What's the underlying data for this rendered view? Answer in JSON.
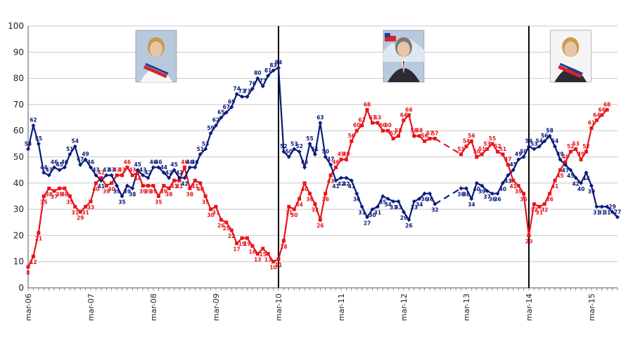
{
  "chart_data": {
    "type": "line",
    "title": "",
    "xlabel": "",
    "ylabel": "",
    "ylim": [
      0,
      100
    ],
    "yticks": [
      0,
      10,
      20,
      30,
      40,
      50,
      60,
      70,
      80,
      90,
      100
    ],
    "xlim": [
      "2006-03",
      "2015-08"
    ],
    "x_tick_labels": [
      "mar-06",
      "mar-07",
      "mar-08",
      "mar-09",
      "mar-10",
      "mar-11",
      "mar-12",
      "mar-13",
      "mar-14",
      "mar-15"
    ],
    "grid": "horizontal",
    "legend": "none",
    "vertical_markers": [
      "2010-03",
      "2014-03"
    ],
    "colors": {
      "approval": "#e8141b",
      "disapproval": "#0a1a7a"
    },
    "portraits": [
      {
        "icon": "portrait-bachelet-icon",
        "at": "2008-03"
      },
      {
        "icon": "portrait-pinera-icon",
        "at": "2012-03"
      },
      {
        "icon": "portrait-bachelet-sash-icon",
        "at": "2014-11"
      }
    ],
    "series": [
      {
        "key": "approval",
        "points": [
          [
            "2006-03",
            8
          ],
          [
            "2006-04",
            12
          ],
          [
            "2006-05",
            21
          ],
          [
            "2006-06",
            35
          ],
          [
            "2006-07",
            38
          ],
          [
            "2006-08",
            37
          ],
          [
            "2006-09",
            38
          ],
          [
            "2006-10",
            38
          ],
          [
            "2006-11",
            35
          ],
          [
            "2006-12",
            31
          ],
          [
            "2007-01",
            29
          ],
          [
            "2007-02",
            31
          ],
          [
            "2007-03",
            33
          ],
          [
            "2007-04",
            40
          ],
          [
            "2007-05",
            42
          ],
          [
            "2007-06",
            39
          ],
          [
            "2007-07",
            40
          ],
          [
            "2007-08",
            43
          ],
          [
            "2007-09",
            43
          ],
          [
            "2007-10",
            46
          ],
          [
            "2007-11",
            43
          ],
          [
            "2007-12",
            44
          ],
          [
            "2008-01",
            39
          ],
          [
            "2008-02",
            39
          ],
          [
            "2008-03",
            39
          ],
          [
            "2008-04",
            35
          ],
          [
            "2008-05",
            39
          ],
          [
            "2008-06",
            38
          ],
          [
            "2008-07",
            41
          ],
          [
            "2008-08",
            41
          ],
          [
            "2008-09",
            46
          ],
          [
            "2008-10",
            38
          ],
          [
            "2008-11",
            41
          ],
          [
            "2008-12",
            40
          ],
          [
            "2009-01",
            35
          ],
          [
            "2009-02",
            30
          ],
          [
            "2009-03",
            31
          ],
          [
            "2009-04",
            26
          ],
          [
            "2009-05",
            25
          ],
          [
            "2009-06",
            22
          ],
          [
            "2009-07",
            17
          ],
          [
            "2009-08",
            19
          ],
          [
            "2009-09",
            19
          ],
          [
            "2009-10",
            16
          ],
          [
            "2009-11",
            13
          ],
          [
            "2009-12",
            15
          ],
          [
            "2010-01",
            13
          ],
          [
            "2010-02",
            10
          ],
          [
            "2010-03",
            11
          ],
          [
            "2010-04",
            18
          ],
          [
            "2010-05",
            31
          ],
          [
            "2010-06",
            30
          ],
          [
            "2010-07",
            34
          ],
          [
            "2010-08",
            40
          ],
          [
            "2010-09",
            36
          ],
          [
            "2010-10",
            32
          ],
          [
            "2010-11",
            26
          ],
          [
            "2010-12",
            36
          ],
          [
            "2011-01",
            43
          ],
          [
            "2011-02",
            46
          ],
          [
            "2011-03",
            49
          ],
          [
            "2011-04",
            49
          ],
          [
            "2011-05",
            56
          ],
          [
            "2011-06",
            60
          ],
          [
            "2011-07",
            62
          ],
          [
            "2011-08",
            68
          ],
          [
            "2011-09",
            63
          ],
          [
            "2011-10",
            63
          ],
          [
            "2011-11",
            60
          ],
          [
            "2011-12",
            60
          ],
          [
            "2012-01",
            57
          ],
          [
            "2012-02",
            58
          ],
          [
            "2012-03",
            64
          ],
          [
            "2012-04",
            66
          ],
          [
            "2012-05",
            58
          ],
          [
            "2012-06",
            58
          ],
          [
            "2012-07",
            56
          ],
          [
            "2012-08",
            57
          ],
          [
            "2012-09",
            57
          ],
          null,
          null,
          null,
          null,
          null,
          [
            "2013-02",
            51
          ],
          [
            "2013-03",
            54
          ],
          [
            "2013-04",
            56
          ],
          [
            "2013-05",
            50
          ],
          [
            "2013-06",
            51
          ],
          [
            "2013-07",
            53
          ],
          [
            "2013-08",
            55
          ],
          [
            "2013-09",
            52
          ],
          [
            "2013-10",
            51
          ],
          [
            "2013-11",
            47
          ],
          [
            "2013-12",
            41
          ],
          [
            "2014-01",
            39
          ],
          [
            "2014-02",
            36
          ],
          [
            "2014-03",
            20
          ],
          [
            "2014-04",
            32
          ],
          [
            "2014-05",
            31
          ],
          [
            "2014-06",
            32
          ],
          [
            "2014-07",
            36
          ],
          [
            "2014-08",
            41
          ],
          [
            "2014-09",
            45
          ],
          [
            "2014-10",
            48
          ],
          [
            "2014-11",
            52
          ],
          [
            "2014-12",
            53
          ],
          [
            "2015-01",
            49
          ],
          [
            "2015-02",
            52
          ],
          [
            "2015-03",
            61
          ],
          [
            "2015-04",
            64
          ],
          [
            "2015-05",
            66
          ],
          [
            "2015-06",
            68
          ]
        ],
        "labels": [
          "8",
          "12",
          "21",
          "35",
          "38",
          "37",
          "38",
          "38",
          "35",
          "31",
          "29",
          "31",
          "33",
          "40",
          "42",
          "39",
          "40",
          "43",
          "43",
          "46",
          "43",
          "44",
          "39",
          "39",
          "39",
          "35",
          "39",
          "38",
          "41",
          "41",
          "46",
          "38",
          "41",
          "40",
          "35",
          "30",
          "31",
          "26",
          "25",
          "22",
          "17",
          "19",
          "19",
          "16",
          "13",
          "15",
          "13",
          "10",
          "11",
          "18",
          "31",
          "30",
          "34",
          "40",
          "36",
          "32",
          "26",
          "36",
          "43",
          "46",
          "49",
          "49",
          "56",
          "60",
          "62",
          "68",
          "63",
          "63",
          "60",
          "60",
          "57",
          "58",
          "64",
          "66",
          "58",
          "58",
          "56",
          "57",
          "57",
          "",
          "",
          "",
          "",
          "",
          "51",
          "54",
          "56",
          "50",
          "51",
          "53",
          "55",
          "52",
          "51",
          "47",
          "41",
          "39",
          "36",
          "20",
          "32",
          "31",
          "32",
          "36",
          "41",
          "45",
          "48",
          "52",
          "53",
          "49",
          "52",
          "61",
          "64",
          "66",
          "68"
        ]
      },
      {
        "key": "disapproval",
        "points": [
          [
            "2006-03",
            53
          ],
          [
            "2006-04",
            62
          ],
          [
            "2006-05",
            55
          ],
          [
            "2006-06",
            44
          ],
          [
            "2006-07",
            43
          ],
          [
            "2006-08",
            46
          ],
          [
            "2006-09",
            45
          ],
          [
            "2006-10",
            46
          ],
          [
            "2006-11",
            51
          ],
          [
            "2006-12",
            54
          ],
          [
            "2007-01",
            47
          ],
          [
            "2007-02",
            49
          ],
          [
            "2007-03",
            46
          ],
          [
            "2007-04",
            43
          ],
          [
            "2007-05",
            41
          ],
          [
            "2007-06",
            43
          ],
          [
            "2007-07",
            43
          ],
          [
            "2007-08",
            39
          ],
          [
            "2007-09",
            35
          ],
          [
            "2007-10",
            39
          ],
          [
            "2007-11",
            38
          ],
          [
            "2007-12",
            45
          ],
          [
            "2008-01",
            43
          ],
          [
            "2008-02",
            42
          ],
          [
            "2008-03",
            46
          ],
          [
            "2008-04",
            46
          ],
          [
            "2008-05",
            44
          ],
          [
            "2008-06",
            42
          ],
          [
            "2008-07",
            45
          ],
          [
            "2008-08",
            42
          ],
          [
            "2008-09",
            42
          ],
          [
            "2008-10",
            46
          ],
          [
            "2008-11",
            46
          ],
          [
            "2008-12",
            51
          ],
          [
            "2009-01",
            53
          ],
          [
            "2009-02",
            59
          ],
          [
            "2009-03",
            62
          ],
          [
            "2009-04",
            65
          ],
          [
            "2009-05",
            67
          ],
          [
            "2009-06",
            69
          ],
          [
            "2009-07",
            74
          ],
          [
            "2009-08",
            73
          ],
          [
            "2009-09",
            73
          ],
          [
            "2009-10",
            76
          ],
          [
            "2009-11",
            80
          ],
          [
            "2009-12",
            77
          ],
          [
            "2010-01",
            81
          ],
          [
            "2010-02",
            83
          ],
          [
            "2010-03",
            84
          ],
          [
            "2010-04",
            52
          ],
          [
            "2010-05",
            50
          ],
          [
            "2010-06",
            53
          ],
          [
            "2010-07",
            52
          ],
          [
            "2010-08",
            46
          ],
          [
            "2010-09",
            55
          ],
          [
            "2010-10",
            51
          ],
          [
            "2010-11",
            63
          ],
          [
            "2010-12",
            50
          ],
          [
            "2011-01",
            47
          ],
          [
            "2011-02",
            41
          ],
          [
            "2011-03",
            42
          ],
          [
            "2011-04",
            42
          ],
          [
            "2011-05",
            41
          ],
          [
            "2011-06",
            36
          ],
          [
            "2011-07",
            31
          ],
          [
            "2011-08",
            27
          ],
          [
            "2011-09",
            30
          ],
          [
            "2011-10",
            31
          ],
          [
            "2011-11",
            35
          ],
          [
            "2011-12",
            34
          ],
          [
            "2012-01",
            33
          ],
          [
            "2012-02",
            33
          ],
          [
            "2012-03",
            29
          ],
          [
            "2012-04",
            26
          ],
          [
            "2012-05",
            33
          ],
          [
            "2012-06",
            34
          ],
          [
            "2012-07",
            36
          ],
          [
            "2012-08",
            36
          ],
          [
            "2012-09",
            32
          ],
          null,
          null,
          null,
          null,
          null,
          [
            "2013-02",
            38
          ],
          [
            "2013-03",
            38
          ],
          [
            "2013-04",
            34
          ],
          [
            "2013-05",
            40
          ],
          [
            "2013-06",
            39
          ],
          [
            "2013-07",
            37
          ],
          [
            "2013-08",
            36
          ],
          [
            "2013-09",
            36
          ],
          [
            "2013-10",
            40
          ],
          [
            "2013-11",
            43
          ],
          [
            "2013-12",
            45
          ],
          [
            "2014-01",
            49
          ],
          [
            "2014-02",
            50
          ],
          [
            "2014-03",
            54
          ],
          [
            "2014-04",
            53
          ],
          [
            "2014-05",
            54
          ],
          [
            "2014-06",
            56
          ],
          [
            "2014-07",
            58
          ],
          [
            "2014-08",
            54
          ],
          [
            "2014-09",
            49
          ],
          [
            "2014-10",
            47
          ],
          [
            "2014-11",
            45
          ],
          [
            "2014-12",
            42
          ],
          [
            "2015-01",
            40
          ],
          [
            "2015-02",
            44
          ],
          [
            "2015-03",
            39
          ],
          [
            "2015-04",
            31
          ],
          [
            "2015-05",
            31
          ],
          [
            "2015-06",
            31
          ],
          [
            "2015-07",
            29
          ],
          [
            "2015-08",
            27
          ]
        ],
        "labels": [
          "53",
          "62",
          "55",
          "44",
          "43",
          "46",
          "45",
          "46",
          "51",
          "54",
          "47",
          "49",
          "46",
          "43",
          "41",
          "43",
          "43",
          "39",
          "35",
          "39",
          "38",
          "45",
          "43",
          "42",
          "46",
          "46",
          "44",
          "42",
          "45",
          "42",
          "42",
          "46",
          "46",
          "51",
          "53",
          "59",
          "62",
          "65",
          "67",
          "69",
          "74",
          "73",
          "73",
          "76",
          "80",
          "77",
          "81",
          "83",
          "84",
          "52",
          "50",
          "53",
          "52",
          "46",
          "55",
          "51",
          "63",
          "50",
          "47",
          "41",
          "42",
          "42",
          "41",
          "36",
          "31",
          "27",
          "30",
          "31",
          "35",
          "34",
          "33",
          "33",
          "29",
          "26",
          "33",
          "34",
          "36",
          "36",
          "32",
          "",
          "",
          "",
          "",
          "",
          "38",
          "38",
          "34",
          "40",
          "39",
          "37",
          "36",
          "36",
          "40",
          "43",
          "45",
          "49",
          "50",
          "54",
          "53",
          "54",
          "56",
          "58",
          "54",
          "49",
          "47",
          "45",
          "42",
          "40",
          "44",
          "39",
          "31",
          "31",
          "31",
          "29",
          "27"
        ]
      }
    ],
    "gap_segments": [
      {
        "series": "approval",
        "from": "2012-09",
        "to": "2013-02"
      },
      {
        "series": "disapproval",
        "from": "2012-09",
        "to": "2013-02"
      }
    ]
  }
}
